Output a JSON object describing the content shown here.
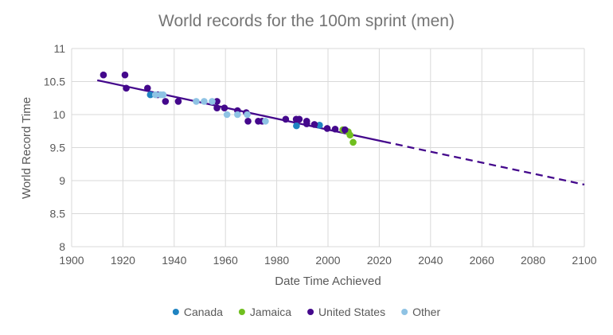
{
  "chart_data": {
    "type": "scatter",
    "title": "World records for the 100m sprint (men)",
    "xlabel": "Date Time Achieved",
    "ylabel": "World Record Time",
    "xlim": [
      1900,
      2100
    ],
    "ylim": [
      8,
      11
    ],
    "xticks": [
      "1900",
      "1920",
      "1940",
      "1960",
      "1980",
      "2000",
      "2020",
      "2040",
      "2060",
      "2080",
      "2100"
    ],
    "xtick_values": [
      1900,
      1920,
      1940,
      1960,
      1980,
      2000,
      2020,
      2040,
      2060,
      2080,
      2100
    ],
    "yticks": [
      "8",
      "8.5",
      "9",
      "9.5",
      "10",
      "10.5",
      "11"
    ],
    "ytick_values": [
      8,
      8.5,
      9,
      9.5,
      10,
      10.5,
      11
    ],
    "grid": true,
    "legend_position": "bottom",
    "series": [
      {
        "name": "Canada",
        "color": "#1f83c1",
        "points": [
          [
            1930.7,
            10.3
          ],
          [
            1987.7,
            9.83
          ],
          [
            1996.7,
            9.84
          ]
        ]
      },
      {
        "name": "Jamaica",
        "color": "#70bf1f",
        "points": [
          [
            2005.8,
            9.77
          ],
          [
            2007.9,
            9.74
          ],
          [
            2008.6,
            9.69
          ],
          [
            2009.8,
            9.58
          ]
        ]
      },
      {
        "name": "United States",
        "color": "#44088c",
        "points": [
          [
            1912.4,
            10.6
          ],
          [
            1920.8,
            10.6
          ],
          [
            1921.3,
            10.4
          ],
          [
            1929.6,
            10.4
          ],
          [
            1933.6,
            10.3
          ],
          [
            1936.6,
            10.2
          ],
          [
            1941.6,
            10.2
          ],
          [
            1956.7,
            10.2
          ],
          [
            1956.7,
            10.1
          ],
          [
            1959.6,
            10.1
          ],
          [
            1964.7,
            10.06
          ],
          [
            1968.1,
            10.03
          ],
          [
            1968.8,
            9.9
          ],
          [
            1972.8,
            9.9
          ],
          [
            1974.3,
            9.9
          ],
          [
            1983.5,
            9.93
          ],
          [
            1987.6,
            9.93
          ],
          [
            1988.8,
            9.93
          ],
          [
            1991.7,
            9.9
          ],
          [
            1991.7,
            9.86
          ],
          [
            1994.7,
            9.85
          ],
          [
            1999.7,
            9.79
          ],
          [
            2002.8,
            9.78
          ],
          [
            2006.6,
            9.77
          ]
        ]
      },
      {
        "name": "Other",
        "color": "#8fc3e4",
        "points": [
          [
            1932.7,
            10.3
          ],
          [
            1934.7,
            10.3
          ],
          [
            1935.7,
            10.3
          ],
          [
            1948.6,
            10.2
          ],
          [
            1951.7,
            10.2
          ],
          [
            1954.8,
            10.2
          ],
          [
            1960.6,
            10.0
          ],
          [
            1964.7,
            10.0
          ],
          [
            1968.5,
            10.0
          ],
          [
            1975.6,
            9.9
          ]
        ]
      }
    ],
    "trendline": {
      "color": "#44088c",
      "solid": [
        [
          1910,
          10.52
        ],
        [
          2021.8,
          9.59
        ]
      ],
      "dashed": [
        [
          2021.8,
          9.59
        ],
        [
          2100,
          8.94
        ]
      ]
    }
  }
}
